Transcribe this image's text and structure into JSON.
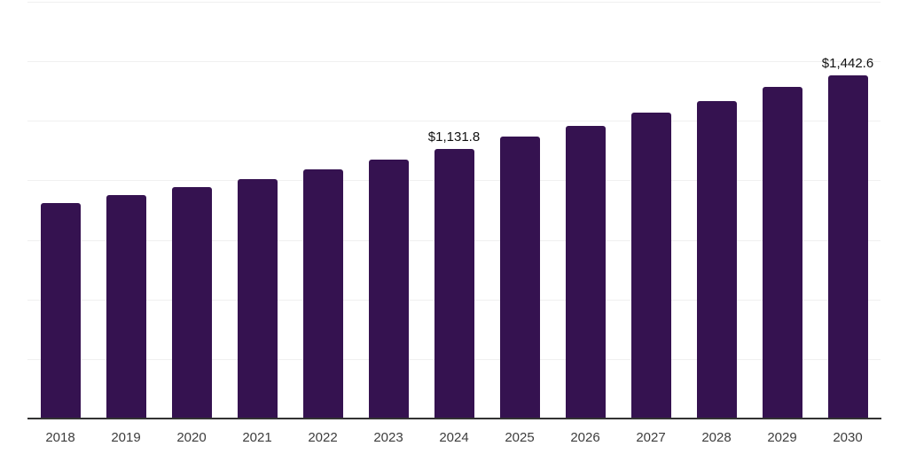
{
  "chart_data": {
    "type": "bar",
    "title": "",
    "xlabel": "",
    "ylabel": "",
    "categories": [
      "2018",
      "2019",
      "2020",
      "2021",
      "2022",
      "2023",
      "2024",
      "2025",
      "2026",
      "2027",
      "2028",
      "2029",
      "2030"
    ],
    "values": [
      905,
      939,
      972,
      1005,
      1047,
      1088,
      1131.8,
      1184,
      1228,
      1284,
      1334,
      1392,
      1442.6
    ],
    "value_labels": [
      "",
      "",
      "",
      "",
      "",
      "",
      "$1,131.8",
      "",
      "",
      "",
      "",
      "",
      "$1,442.6"
    ],
    "ylim": [
      0,
      1750
    ],
    "grid_step": 250,
    "grid": true,
    "legend": false,
    "colors": {
      "bar": "#351250",
      "axis": "#333333",
      "gridline": "#f0f0f0",
      "value_label": "#111111",
      "tick_label": "#3d3d3d",
      "background": "#ffffff"
    }
  }
}
